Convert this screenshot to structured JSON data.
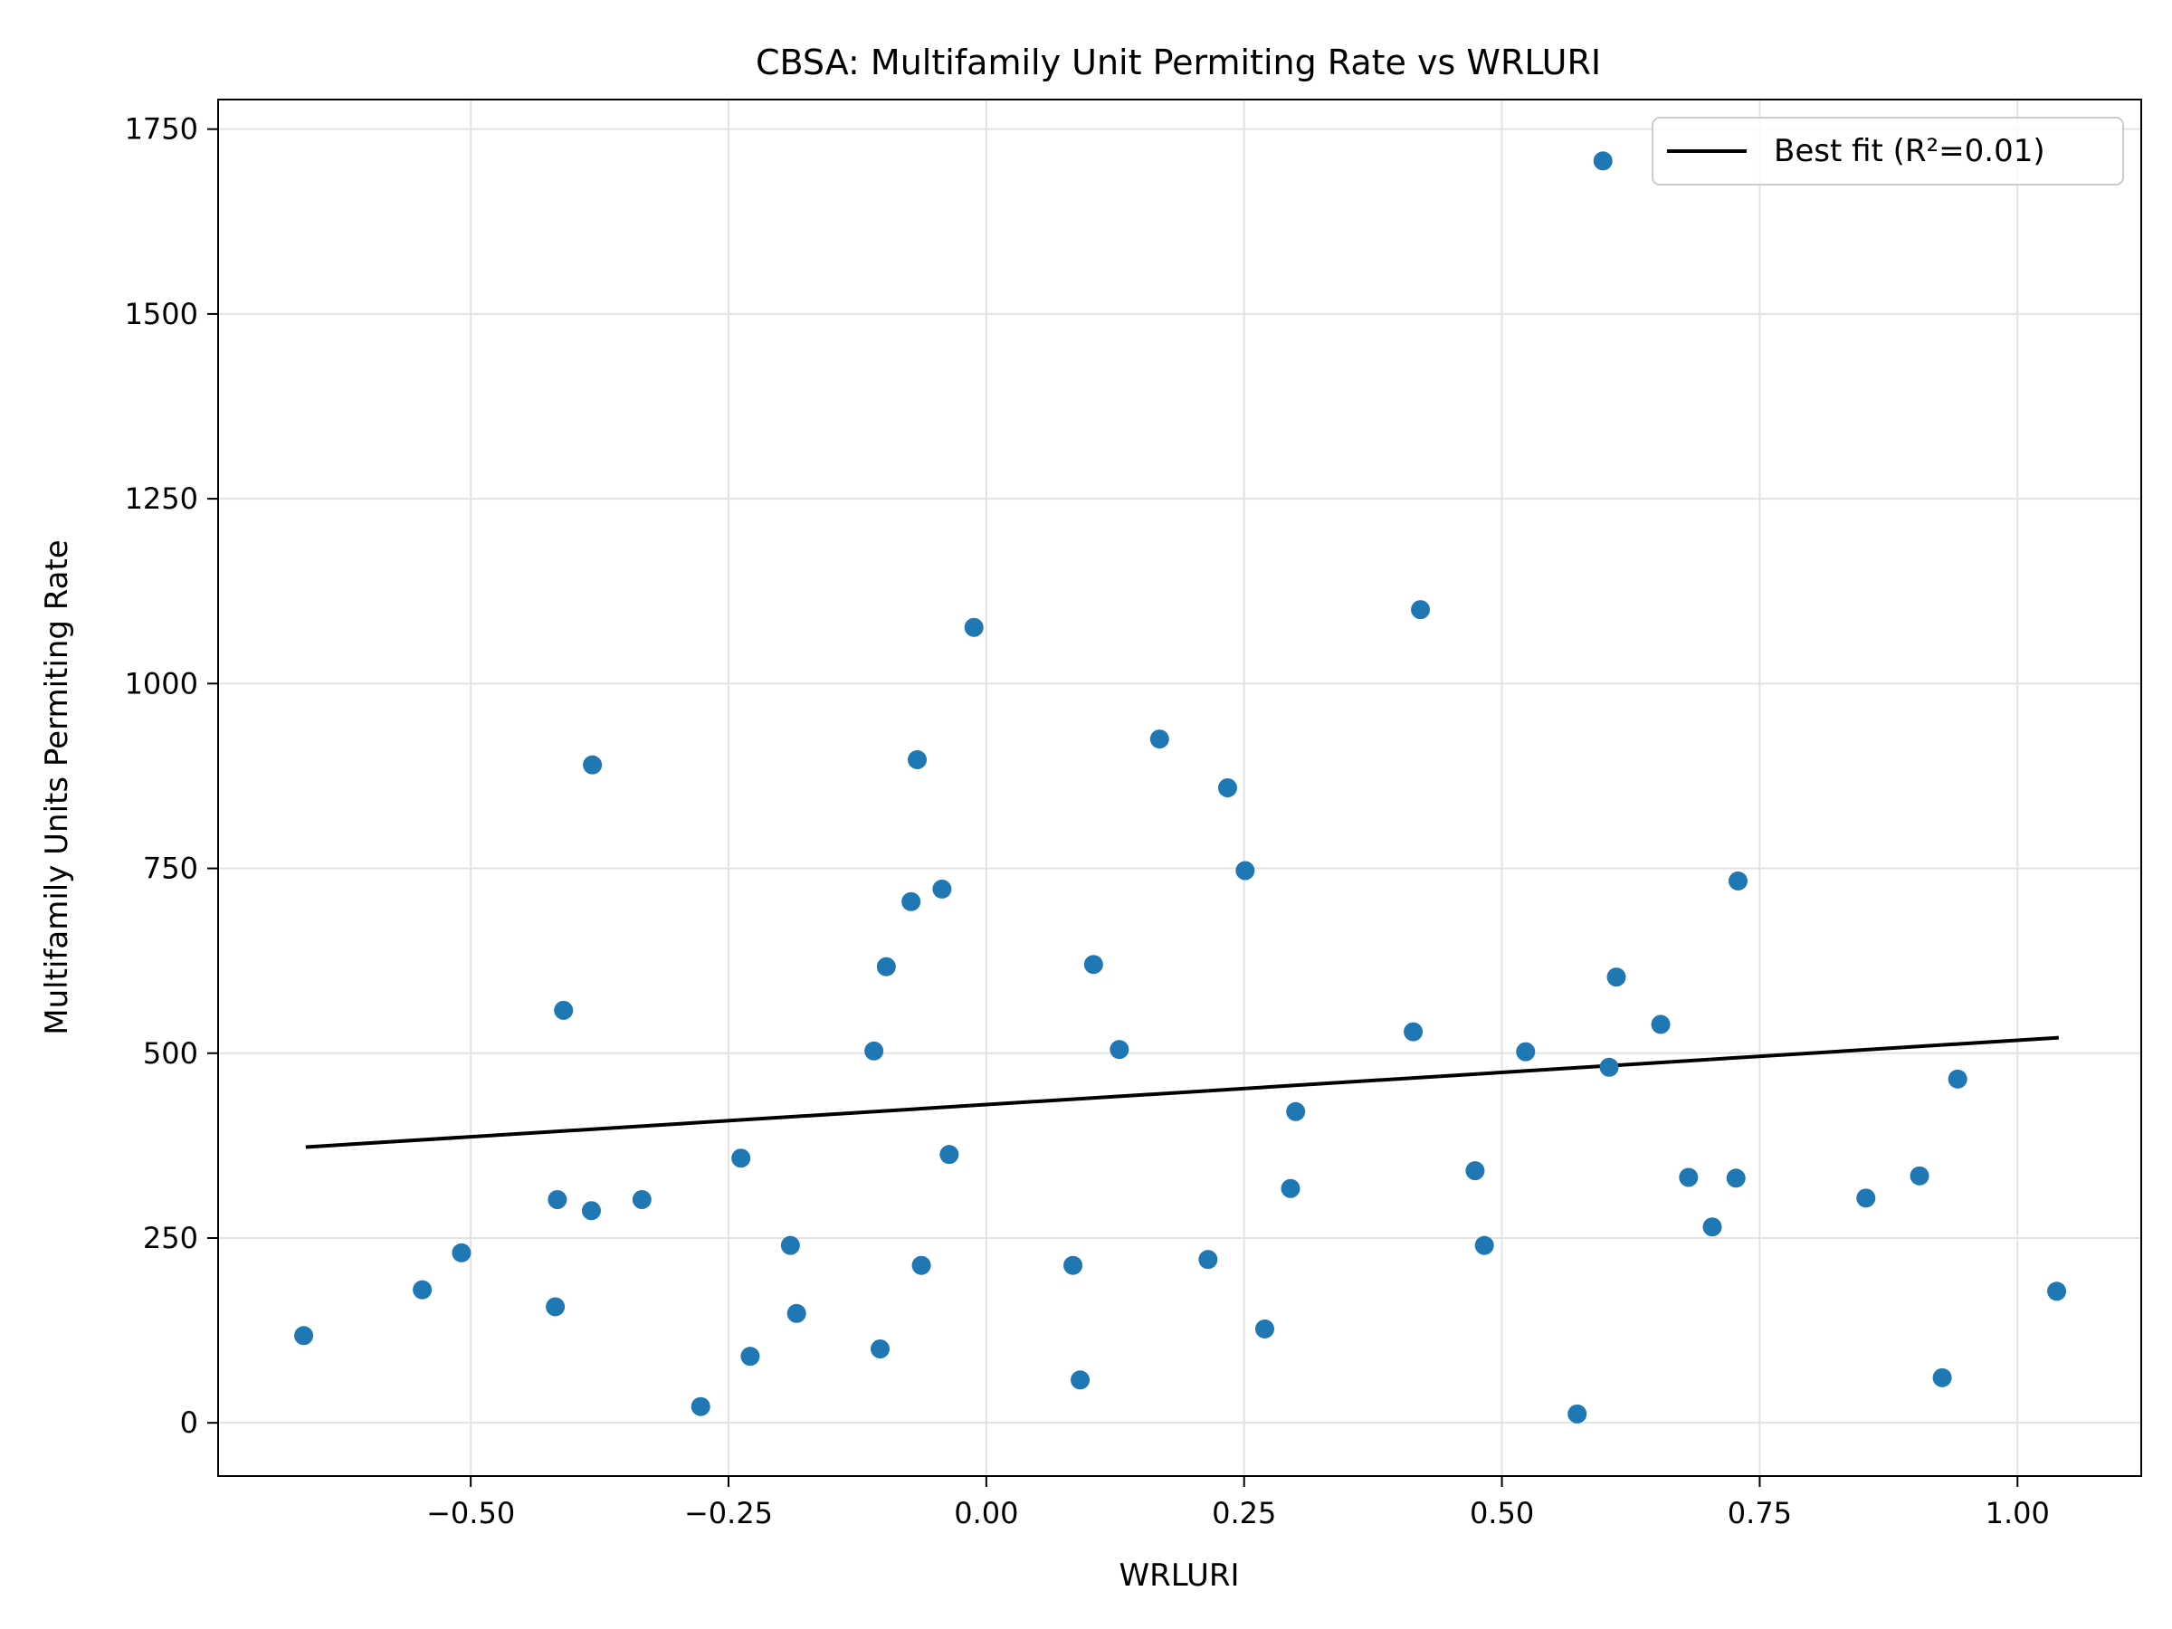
{
  "chart_data": {
    "type": "scatter",
    "title": "CBSA: Multifamily Unit Permiting Rate vs WRLURI",
    "xlabel": "WRLURI",
    "ylabel": "Multifamily Units Permiting Rate",
    "xlim": [
      -0.745,
      1.12
    ],
    "ylim": [
      -72,
      1790
    ],
    "xticks": [
      -0.5,
      -0.25,
      0.0,
      0.25,
      0.5,
      0.75,
      1.0
    ],
    "xtick_labels": [
      "−0.50",
      "−0.25",
      "0.00",
      "0.25",
      "0.50",
      "0.75",
      "1.00"
    ],
    "yticks": [
      0,
      250,
      500,
      750,
      1000,
      1250,
      1500,
      1750
    ],
    "ytick_labels": [
      "0",
      "250",
      "500",
      "750",
      "1000",
      "1250",
      "1500",
      "1750"
    ],
    "grid": true,
    "marker_color": "#1f77b4",
    "line_color": "#000000",
    "legend": {
      "position": "upper right",
      "label": "Best fit (R²=0.01)"
    },
    "fit_line": {
      "x": [
        -0.66,
        1.04
      ],
      "y": [
        373,
        521
      ]
    },
    "points": [
      {
        "x": -0.662,
        "y": 118
      },
      {
        "x": -0.547,
        "y": 180
      },
      {
        "x": -0.509,
        "y": 230
      },
      {
        "x": -0.416,
        "y": 302
      },
      {
        "x": -0.418,
        "y": 157
      },
      {
        "x": -0.41,
        "y": 558
      },
      {
        "x": -0.382,
        "y": 890
      },
      {
        "x": -0.383,
        "y": 287
      },
      {
        "x": -0.334,
        "y": 302
      },
      {
        "x": -0.277,
        "y": 22
      },
      {
        "x": -0.238,
        "y": 358
      },
      {
        "x": -0.229,
        "y": 90
      },
      {
        "x": -0.19,
        "y": 240
      },
      {
        "x": -0.184,
        "y": 148
      },
      {
        "x": -0.109,
        "y": 503
      },
      {
        "x": -0.103,
        "y": 100
      },
      {
        "x": -0.097,
        "y": 617
      },
      {
        "x": -0.073,
        "y": 705
      },
      {
        "x": -0.067,
        "y": 897
      },
      {
        "x": -0.063,
        "y": 213
      },
      {
        "x": -0.043,
        "y": 722
      },
      {
        "x": -0.036,
        "y": 363
      },
      {
        "x": -0.012,
        "y": 1076
      },
      {
        "x": 0.084,
        "y": 213
      },
      {
        "x": 0.091,
        "y": 58
      },
      {
        "x": 0.104,
        "y": 620
      },
      {
        "x": 0.129,
        "y": 505
      },
      {
        "x": 0.168,
        "y": 925
      },
      {
        "x": 0.215,
        "y": 221
      },
      {
        "x": 0.234,
        "y": 859
      },
      {
        "x": 0.251,
        "y": 747
      },
      {
        "x": 0.27,
        "y": 127
      },
      {
        "x": 0.295,
        "y": 317
      },
      {
        "x": 0.3,
        "y": 421
      },
      {
        "x": 0.414,
        "y": 529
      },
      {
        "x": 0.421,
        "y": 1100
      },
      {
        "x": 0.474,
        "y": 341
      },
      {
        "x": 0.483,
        "y": 240
      },
      {
        "x": 0.523,
        "y": 502
      },
      {
        "x": 0.573,
        "y": 12
      },
      {
        "x": 0.598,
        "y": 1707
      },
      {
        "x": 0.604,
        "y": 481
      },
      {
        "x": 0.611,
        "y": 603
      },
      {
        "x": 0.654,
        "y": 539
      },
      {
        "x": 0.681,
        "y": 332
      },
      {
        "x": 0.704,
        "y": 265
      },
      {
        "x": 0.727,
        "y": 331
      },
      {
        "x": 0.729,
        "y": 733
      },
      {
        "x": 0.853,
        "y": 304
      },
      {
        "x": 0.905,
        "y": 334
      },
      {
        "x": 0.927,
        "y": 61
      },
      {
        "x": 0.942,
        "y": 465
      },
      {
        "x": 1.038,
        "y": 178
      }
    ]
  }
}
